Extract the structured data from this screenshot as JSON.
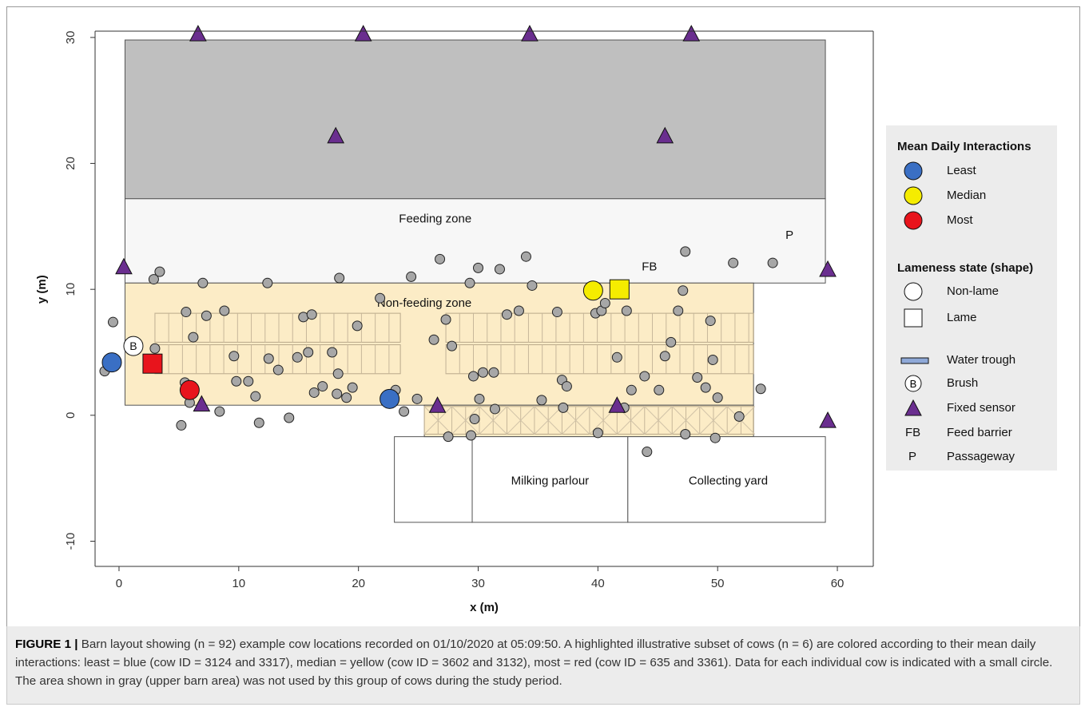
{
  "chart_data": {
    "type": "scatter",
    "xlabel": "x (m)",
    "ylabel": "y (m)",
    "xlim": [
      -2,
      63
    ],
    "ylim": [
      -12,
      30.5
    ],
    "x_ticks": [
      0,
      10,
      20,
      30,
      40,
      50,
      60
    ],
    "y_ticks": [
      -10,
      0,
      10,
      20,
      30
    ],
    "grid": false,
    "legend_position": "right",
    "colors": {
      "least": "#3a6fc4",
      "median": "#f5ec00",
      "most": "#e8141c",
      "cow": "#a7a7a7",
      "sensor": "#6a2e8f",
      "unused_area": "#bfbfbf",
      "nonfeeding_zone": "#fcecc6",
      "feeding_zone": "#f7f7f7"
    },
    "zones": [
      {
        "name": "upper_gray_area",
        "x": [
          0.5,
          59
        ],
        "y": [
          17.2,
          29.8
        ]
      },
      {
        "name": "feeding_zone",
        "label": "Feeding zone",
        "x": [
          0.5,
          59
        ],
        "y": [
          10.5,
          17.2
        ]
      },
      {
        "name": "nonfeeding_zone",
        "label": "Non-feeding zone",
        "x": [
          0.5,
          53
        ],
        "y": [
          0.8,
          10.5
        ]
      },
      {
        "name": "nonfeeding_zone_lower",
        "x": [
          25.5,
          53
        ],
        "y": [
          -1.7,
          0.8
        ]
      },
      {
        "name": "milking_parlour",
        "label": "Milking parlour",
        "x": [
          29.5,
          42.5
        ],
        "y": [
          -8.5,
          -1.7
        ]
      },
      {
        "name": "collecting_yard",
        "label": "Collecting yard",
        "x": [
          42.5,
          59
        ],
        "y": [
          -8.5,
          -1.7
        ]
      }
    ],
    "zone_text": [
      {
        "text": "FB",
        "x": 44.3,
        "y": 11.5
      },
      {
        "text": "P",
        "x": 56,
        "y": 14
      }
    ],
    "brush": {
      "x": 1.2,
      "y": 5.5,
      "label": "B"
    },
    "fixed_sensors": [
      [
        6.6,
        30.3
      ],
      [
        20.4,
        30.3
      ],
      [
        34.3,
        30.3
      ],
      [
        47.8,
        30.3
      ],
      [
        18.1,
        22.2
      ],
      [
        45.6,
        22.2
      ],
      [
        0.4,
        11.8
      ],
      [
        59.2,
        11.6
      ],
      [
        6.9,
        0.9
      ],
      [
        26.6,
        0.8
      ],
      [
        41.6,
        0.8
      ],
      [
        59.2,
        -0.4
      ]
    ],
    "cows_highlighted": [
      {
        "group": "least",
        "lameness": "non-lame",
        "x": -0.6,
        "y": 4.2
      },
      {
        "group": "least",
        "lameness": "non-lame",
        "x": 22.6,
        "y": 1.3
      },
      {
        "group": "median",
        "lameness": "non-lame",
        "x": 39.6,
        "y": 9.9
      },
      {
        "group": "median",
        "lameness": "lame",
        "x": 41.8,
        "y": 10.0
      },
      {
        "group": "most",
        "lameness": "non-lame",
        "x": 5.9,
        "y": 2.0
      },
      {
        "group": "most",
        "lameness": "lame",
        "x": 2.8,
        "y": 4.1
      }
    ],
    "cows": [
      [
        -1.2,
        3.5
      ],
      [
        -0.5,
        7.4
      ],
      [
        2.9,
        10.8
      ],
      [
        3.4,
        11.4
      ],
      [
        3.0,
        5.3
      ],
      [
        5.6,
        8.2
      ],
      [
        6.2,
        6.2
      ],
      [
        7.3,
        7.9
      ],
      [
        5.5,
        2.6
      ],
      [
        5.9,
        1.0
      ],
      [
        5.2,
        -0.8
      ],
      [
        8.4,
        0.3
      ],
      [
        8.8,
        8.3
      ],
      [
        9.6,
        4.7
      ],
      [
        9.8,
        2.7
      ],
      [
        10.8,
        2.7
      ],
      [
        11.4,
        1.5
      ],
      [
        11.7,
        -0.6
      ],
      [
        12.4,
        10.5
      ],
      [
        13.3,
        3.6
      ],
      [
        14.2,
        -0.2
      ],
      [
        14.9,
        4.6
      ],
      [
        15.4,
        7.8
      ],
      [
        15.8,
        5.0
      ],
      [
        16.3,
        1.8
      ],
      [
        16.1,
        8.0
      ],
      [
        17.8,
        5.0
      ],
      [
        18.2,
        1.7
      ],
      [
        18.3,
        3.3
      ],
      [
        18.4,
        10.9
      ],
      [
        19.0,
        1.4
      ],
      [
        19.5,
        2.2
      ],
      [
        19.9,
        7.1
      ],
      [
        23.1,
        2.0
      ],
      [
        23.8,
        0.3
      ],
      [
        24.9,
        1.3
      ],
      [
        26.3,
        6.0
      ],
      [
        26.8,
        12.4
      ],
      [
        27.3,
        7.6
      ],
      [
        27.5,
        -1.7
      ],
      [
        27.8,
        5.5
      ],
      [
        29.3,
        10.5
      ],
      [
        29.4,
        -1.6
      ],
      [
        29.6,
        3.1
      ],
      [
        29.7,
        -0.3
      ],
      [
        30.0,
        11.7
      ],
      [
        30.1,
        1.3
      ],
      [
        30.4,
        3.4
      ],
      [
        31.3,
        3.4
      ],
      [
        31.4,
        0.5
      ],
      [
        31.8,
        11.6
      ],
      [
        32.4,
        8.0
      ],
      [
        33.4,
        8.3
      ],
      [
        34.0,
        12.6
      ],
      [
        34.5,
        10.3
      ],
      [
        35.3,
        1.2
      ],
      [
        36.6,
        8.2
      ],
      [
        37.1,
        0.6
      ],
      [
        37.0,
        2.8
      ],
      [
        37.4,
        2.3
      ],
      [
        39.8,
        8.1
      ],
      [
        40.0,
        -1.4
      ],
      [
        40.3,
        8.3
      ],
      [
        40.6,
        8.9
      ],
      [
        41.6,
        4.6
      ],
      [
        42.2,
        0.6
      ],
      [
        42.4,
        8.3
      ],
      [
        42.8,
        2.0
      ],
      [
        43.9,
        3.1
      ],
      [
        44.1,
        -2.9
      ],
      [
        45.1,
        2.0
      ],
      [
        45.6,
        4.7
      ],
      [
        46.1,
        5.8
      ],
      [
        46.7,
        8.3
      ],
      [
        47.1,
        9.9
      ],
      [
        47.3,
        13.0
      ],
      [
        47.3,
        -1.5
      ],
      [
        48.3,
        3.0
      ],
      [
        49.0,
        2.2
      ],
      [
        49.4,
        7.5
      ],
      [
        49.6,
        4.4
      ],
      [
        50.0,
        1.4
      ],
      [
        49.8,
        -1.8
      ],
      [
        51.3,
        12.1
      ],
      [
        51.8,
        -0.1
      ],
      [
        54.6,
        12.1
      ],
      [
        53.6,
        2.1
      ],
      [
        17.0,
        2.3
      ],
      [
        12.5,
        4.5
      ],
      [
        24.4,
        11.0
      ],
      [
        7.0,
        10.5
      ],
      [
        21.8,
        9.3
      ]
    ]
  },
  "zone_labels": {
    "feeding": "Feeding zone",
    "nonfeeding": "Non-feeding zone",
    "milking": "Milking parlour",
    "collecting": "Collecting yard",
    "fb": "FB",
    "p": "P",
    "brush": "B"
  },
  "axis": {
    "xlabel": "x (m)",
    "ylabel": "y (m)",
    "x_tick_labels": [
      "0",
      "10",
      "20",
      "30",
      "40",
      "50",
      "60"
    ],
    "y_tick_labels": [
      "-10",
      "0",
      "10",
      "20",
      "30"
    ]
  },
  "legend": {
    "interactions_title": "Mean Daily Interactions",
    "least": "Least",
    "median": "Median",
    "most": "Most",
    "lameness_title": "Lameness state (shape)",
    "non_lame": "Non-lame",
    "lame": "Lame",
    "water_trough": "Water trough",
    "brush": "Brush",
    "brush_symbol": "B",
    "fixed_sensor": "Fixed sensor",
    "fb_symbol": "FB",
    "fb": "Feed barrier",
    "p_symbol": "P",
    "p": "Passageway"
  },
  "caption": {
    "label": "FIGURE 1 |",
    "text": " Barn layout showing (n = 92) example cow locations recorded on 01/10/2020 at 05:09:50. A highlighted illustrative subset of cows (n = 6) are colored according to their mean daily interactions: least = blue (cow ID = 3124 and 3317), median = yellow (cow ID = 3602 and 3132), most = red (cow ID = 635 and 3361). Data for each individual cow is indicated with a small circle. The area shown in gray (upper barn area) was not used by this group of cows during the study period."
  }
}
